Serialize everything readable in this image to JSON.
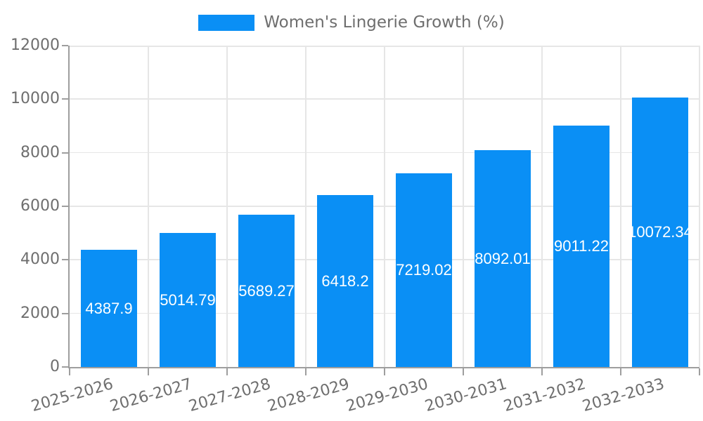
{
  "legend": {
    "label": "Women's Lingerie Growth (%)"
  },
  "chart_data": {
    "type": "bar",
    "title": "Women's Lingerie Growth (%)",
    "categories": [
      "2025-2026",
      "2026-2027",
      "2027-2028",
      "2028-2029",
      "2029-2030",
      "2030-2031",
      "2031-2032",
      "2032-2033"
    ],
    "values": [
      4387.9,
      5014.79,
      5689.27,
      6418.2,
      7219.02,
      8092.01,
      9011.22,
      10072.34
    ],
    "bar_labels": [
      "4387.9",
      "5014.79",
      "5689.27",
      "6418.2",
      "7219.02",
      "8092.01",
      "9011.22",
      "10072.34"
    ],
    "xlabel": "",
    "ylabel": "",
    "ylim": [
      0,
      12000
    ],
    "y_ticks": [
      0,
      2000,
      4000,
      6000,
      8000,
      10000,
      12000
    ],
    "grid": true,
    "legend_position": "top",
    "value_labels_position": "center-inside"
  },
  "colors": {
    "bar": "#0a8ff5",
    "grid": "#e6e6e6",
    "axis": "#9e9e9e",
    "tick_text": "#6e6e6e",
    "value_text": "#ffffff",
    "background": "#ffffff"
  }
}
